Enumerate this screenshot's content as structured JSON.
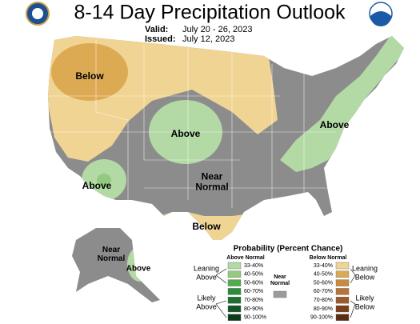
{
  "header": {
    "title": "8-14 Day Precipitation Outlook",
    "valid_label": "Valid:",
    "valid": "July 20 - 26, 2023",
    "issued_label": "Issued:",
    "issued": "July 12, 2023"
  },
  "map_labels": [
    {
      "lines": [
        "Below"
      ]
    },
    {
      "lines": [
        "Above"
      ]
    },
    {
      "lines": [
        "Above"
      ]
    },
    {
      "lines": [
        "Above"
      ]
    },
    {
      "lines": [
        "Near",
        "Normal"
      ]
    },
    {
      "lines": [
        "Below"
      ]
    },
    {
      "lines": [
        "Near",
        "Normal"
      ]
    },
    {
      "lines": [
        "Above"
      ]
    }
  ],
  "legend": {
    "title": "Probability (Percent Chance)",
    "above": {
      "heading": "Above Normal",
      "items": [
        {
          "label": "33-40%",
          "color": "#b3d9a5"
        },
        {
          "label": "40-50%",
          "color": "#94ca7f"
        },
        {
          "label": "50-60%",
          "color": "#4fae4a"
        },
        {
          "label": "60-70%",
          "color": "#2d8c3a"
        },
        {
          "label": "70-80%",
          "color": "#1f6e32"
        },
        {
          "label": "80-90%",
          "color": "#155426"
        },
        {
          "label": "90-100%",
          "color": "#0c3a16"
        }
      ]
    },
    "below": {
      "heading": "Below Normal",
      "items": [
        {
          "label": "33-40%",
          "color": "#f0d493"
        },
        {
          "label": "40-50%",
          "color": "#ddaa54"
        },
        {
          "label": "50-60%",
          "color": "#c98a3b"
        },
        {
          "label": "60-70%",
          "color": "#b8733a"
        },
        {
          "label": "70-80%",
          "color": "#9c5a2a"
        },
        {
          "label": "80-90%",
          "color": "#7a3f18"
        },
        {
          "label": "90-100%",
          "color": "#5a2c10"
        }
      ]
    },
    "near": {
      "lines": [
        "Near",
        "Normal"
      ],
      "color": "#9b9b9b"
    },
    "leaning_above": [
      "Leaning",
      "Above"
    ],
    "likely_above": [
      "Likely",
      "Above"
    ],
    "leaning_below": [
      "Leaning",
      "Below"
    ],
    "likely_below": [
      "Likely",
      "Below"
    ]
  }
}
